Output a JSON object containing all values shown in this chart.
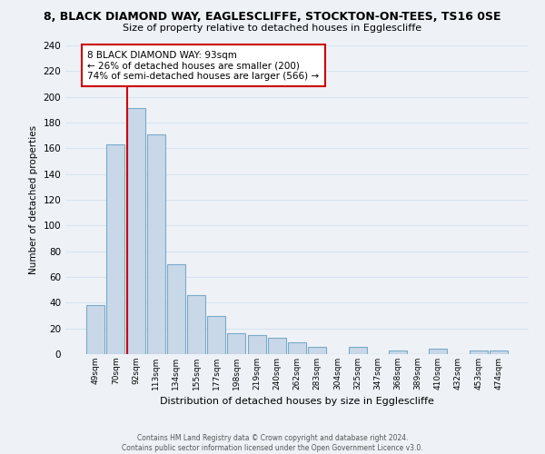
{
  "title_line1": "8, BLACK DIAMOND WAY, EAGLESCLIFFE, STOCKTON-ON-TEES, TS16 0SE",
  "title_line2": "Size of property relative to detached houses in Egglescliffe",
  "xlabel": "Distribution of detached houses by size in Egglescliffe",
  "ylabel": "Number of detached properties",
  "bar_labels": [
    "49sqm",
    "70sqm",
    "92sqm",
    "113sqm",
    "134sqm",
    "155sqm",
    "177sqm",
    "198sqm",
    "219sqm",
    "240sqm",
    "262sqm",
    "283sqm",
    "304sqm",
    "325sqm",
    "347sqm",
    "368sqm",
    "389sqm",
    "410sqm",
    "432sqm",
    "453sqm",
    "474sqm"
  ],
  "bar_values": [
    38,
    163,
    191,
    171,
    70,
    46,
    30,
    16,
    15,
    13,
    9,
    6,
    0,
    6,
    0,
    3,
    0,
    4,
    0,
    3,
    3
  ],
  "bar_color": "#c8d8e8",
  "bar_edge_color": "#7aaac8",
  "highlight_index": 2,
  "highlight_line_color": "#cc0000",
  "ylim": [
    0,
    240
  ],
  "yticks": [
    0,
    20,
    40,
    60,
    80,
    100,
    120,
    140,
    160,
    180,
    200,
    220,
    240
  ],
  "annotation_box_text_line1": "8 BLACK DIAMOND WAY: 93sqm",
  "annotation_box_text_line2": "← 26% of detached houses are smaller (200)",
  "annotation_box_text_line3": "74% of semi-detached houses are larger (566) →",
  "footer_line1": "Contains HM Land Registry data © Crown copyright and database right 2024.",
  "footer_line2": "Contains public sector information licensed under the Open Government Licence v3.0.",
  "background_color": "#eef2f7",
  "grid_color": "#d8e4f0"
}
